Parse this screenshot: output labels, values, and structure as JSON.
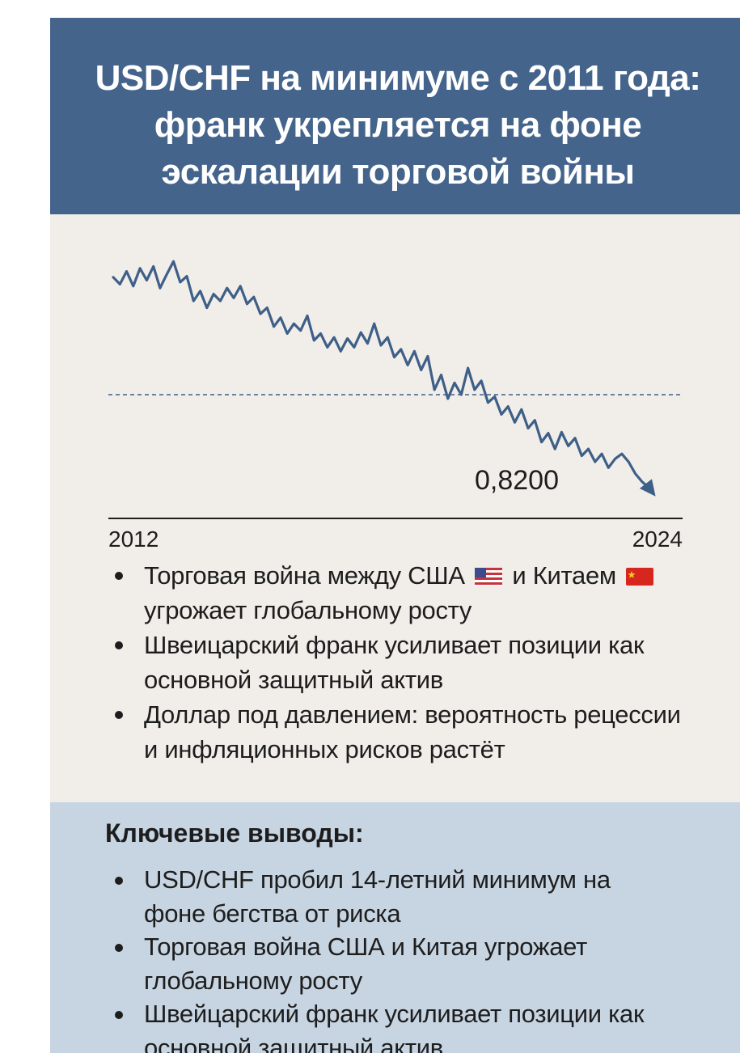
{
  "header": {
    "title": "USD/CHF на минимуме с 2011 года: франк укрепляется на фоне эскалации торговой войны"
  },
  "colors": {
    "header_bg": "#44648c",
    "chart_bg": "#f1eeea",
    "takeaways_bg": "#c7d4e2",
    "line": "#3e5f87"
  },
  "chart_data": {
    "type": "line",
    "title": "",
    "xlabel": "",
    "ylabel": "",
    "x_tick_labels": [
      "2012",
      "2024"
    ],
    "xlim": [
      2012,
      2024
    ],
    "ylim": [
      0.8,
      1.05
    ],
    "reference_line": {
      "value": 0.9,
      "style": "dashed"
    },
    "annotation": "0,8200",
    "trend_arrow": true,
    "grid": false,
    "legend": "none",
    "series": [
      {
        "x": [
          2012.0,
          2012.15,
          2012.3,
          2012.45,
          2012.6,
          2012.75,
          2012.9,
          2013.05,
          2013.2,
          2013.35,
          2013.5,
          2013.65,
          2013.8,
          2013.95,
          2014.1,
          2014.25,
          2014.4,
          2014.55,
          2014.7,
          2014.85,
          2015.0,
          2015.15,
          2015.3,
          2015.45,
          2015.6,
          2015.75,
          2015.9,
          2016.05,
          2016.2,
          2016.35,
          2016.5,
          2016.65,
          2016.8,
          2016.95,
          2017.1,
          2017.25,
          2017.4,
          2017.55,
          2017.7,
          2017.85,
          2018.0,
          2018.15,
          2018.3,
          2018.45,
          2018.6,
          2018.75,
          2018.9,
          2019.05,
          2019.2,
          2019.35,
          2019.5,
          2019.65,
          2019.8,
          2019.95,
          2020.1,
          2020.25,
          2020.4,
          2020.55,
          2020.7,
          2020.85,
          2021.0,
          2021.15,
          2021.3,
          2021.45,
          2021.6,
          2021.75,
          2021.9,
          2022.05,
          2022.2,
          2022.35,
          2022.5,
          2022.65,
          2022.8,
          2022.95,
          2023.1,
          2023.25,
          2023.4,
          2023.55,
          2023.7,
          2023.85,
          2024.0
        ],
        "y": [
          1.019,
          1.012,
          1.025,
          1.01,
          1.028,
          1.016,
          1.03,
          1.008,
          1.022,
          1.035,
          1.014,
          1.02,
          0.995,
          1.005,
          0.988,
          1.002,
          0.995,
          1.008,
          0.998,
          1.01,
          0.992,
          0.999,
          0.982,
          0.988,
          0.969,
          0.978,
          0.962,
          0.972,
          0.965,
          0.98,
          0.955,
          0.962,
          0.948,
          0.958,
          0.944,
          0.957,
          0.948,
          0.963,
          0.952,
          0.972,
          0.95,
          0.958,
          0.938,
          0.946,
          0.93,
          0.944,
          0.925,
          0.939,
          0.905,
          0.92,
          0.896,
          0.912,
          0.9,
          0.927,
          0.905,
          0.914,
          0.892,
          0.898,
          0.88,
          0.888,
          0.872,
          0.885,
          0.866,
          0.874,
          0.852,
          0.861,
          0.845,
          0.862,
          0.848,
          0.856,
          0.838,
          0.845,
          0.832,
          0.84,
          0.826,
          0.835,
          0.84,
          0.832,
          0.82,
          0.812,
          0.806
        ]
      }
    ]
  },
  "bullets": {
    "items": [
      {
        "before": "Торговая война между США",
        "middle": "и Китаем",
        "after": "угрожает глобальному росту"
      },
      {
        "text": "Швеицарский франк усиливает позиции как основной защитный актив"
      },
      {
        "text": "Доллар под давлением: вероятность рецессии и инфляционных рисков растёт"
      }
    ]
  },
  "flags": {
    "us": "us-flag-icon",
    "china": "china-flag-icon"
  },
  "takeaways": {
    "title": "Ключевые выводы:",
    "items": [
      "USD/CHF пробил 14-летний минимум на фоне бегства от риска",
      "Торговая война США и Китая угрожает глобальному росту",
      "Швейцарский франк усиливает позиции как основной защитный актив"
    ]
  }
}
